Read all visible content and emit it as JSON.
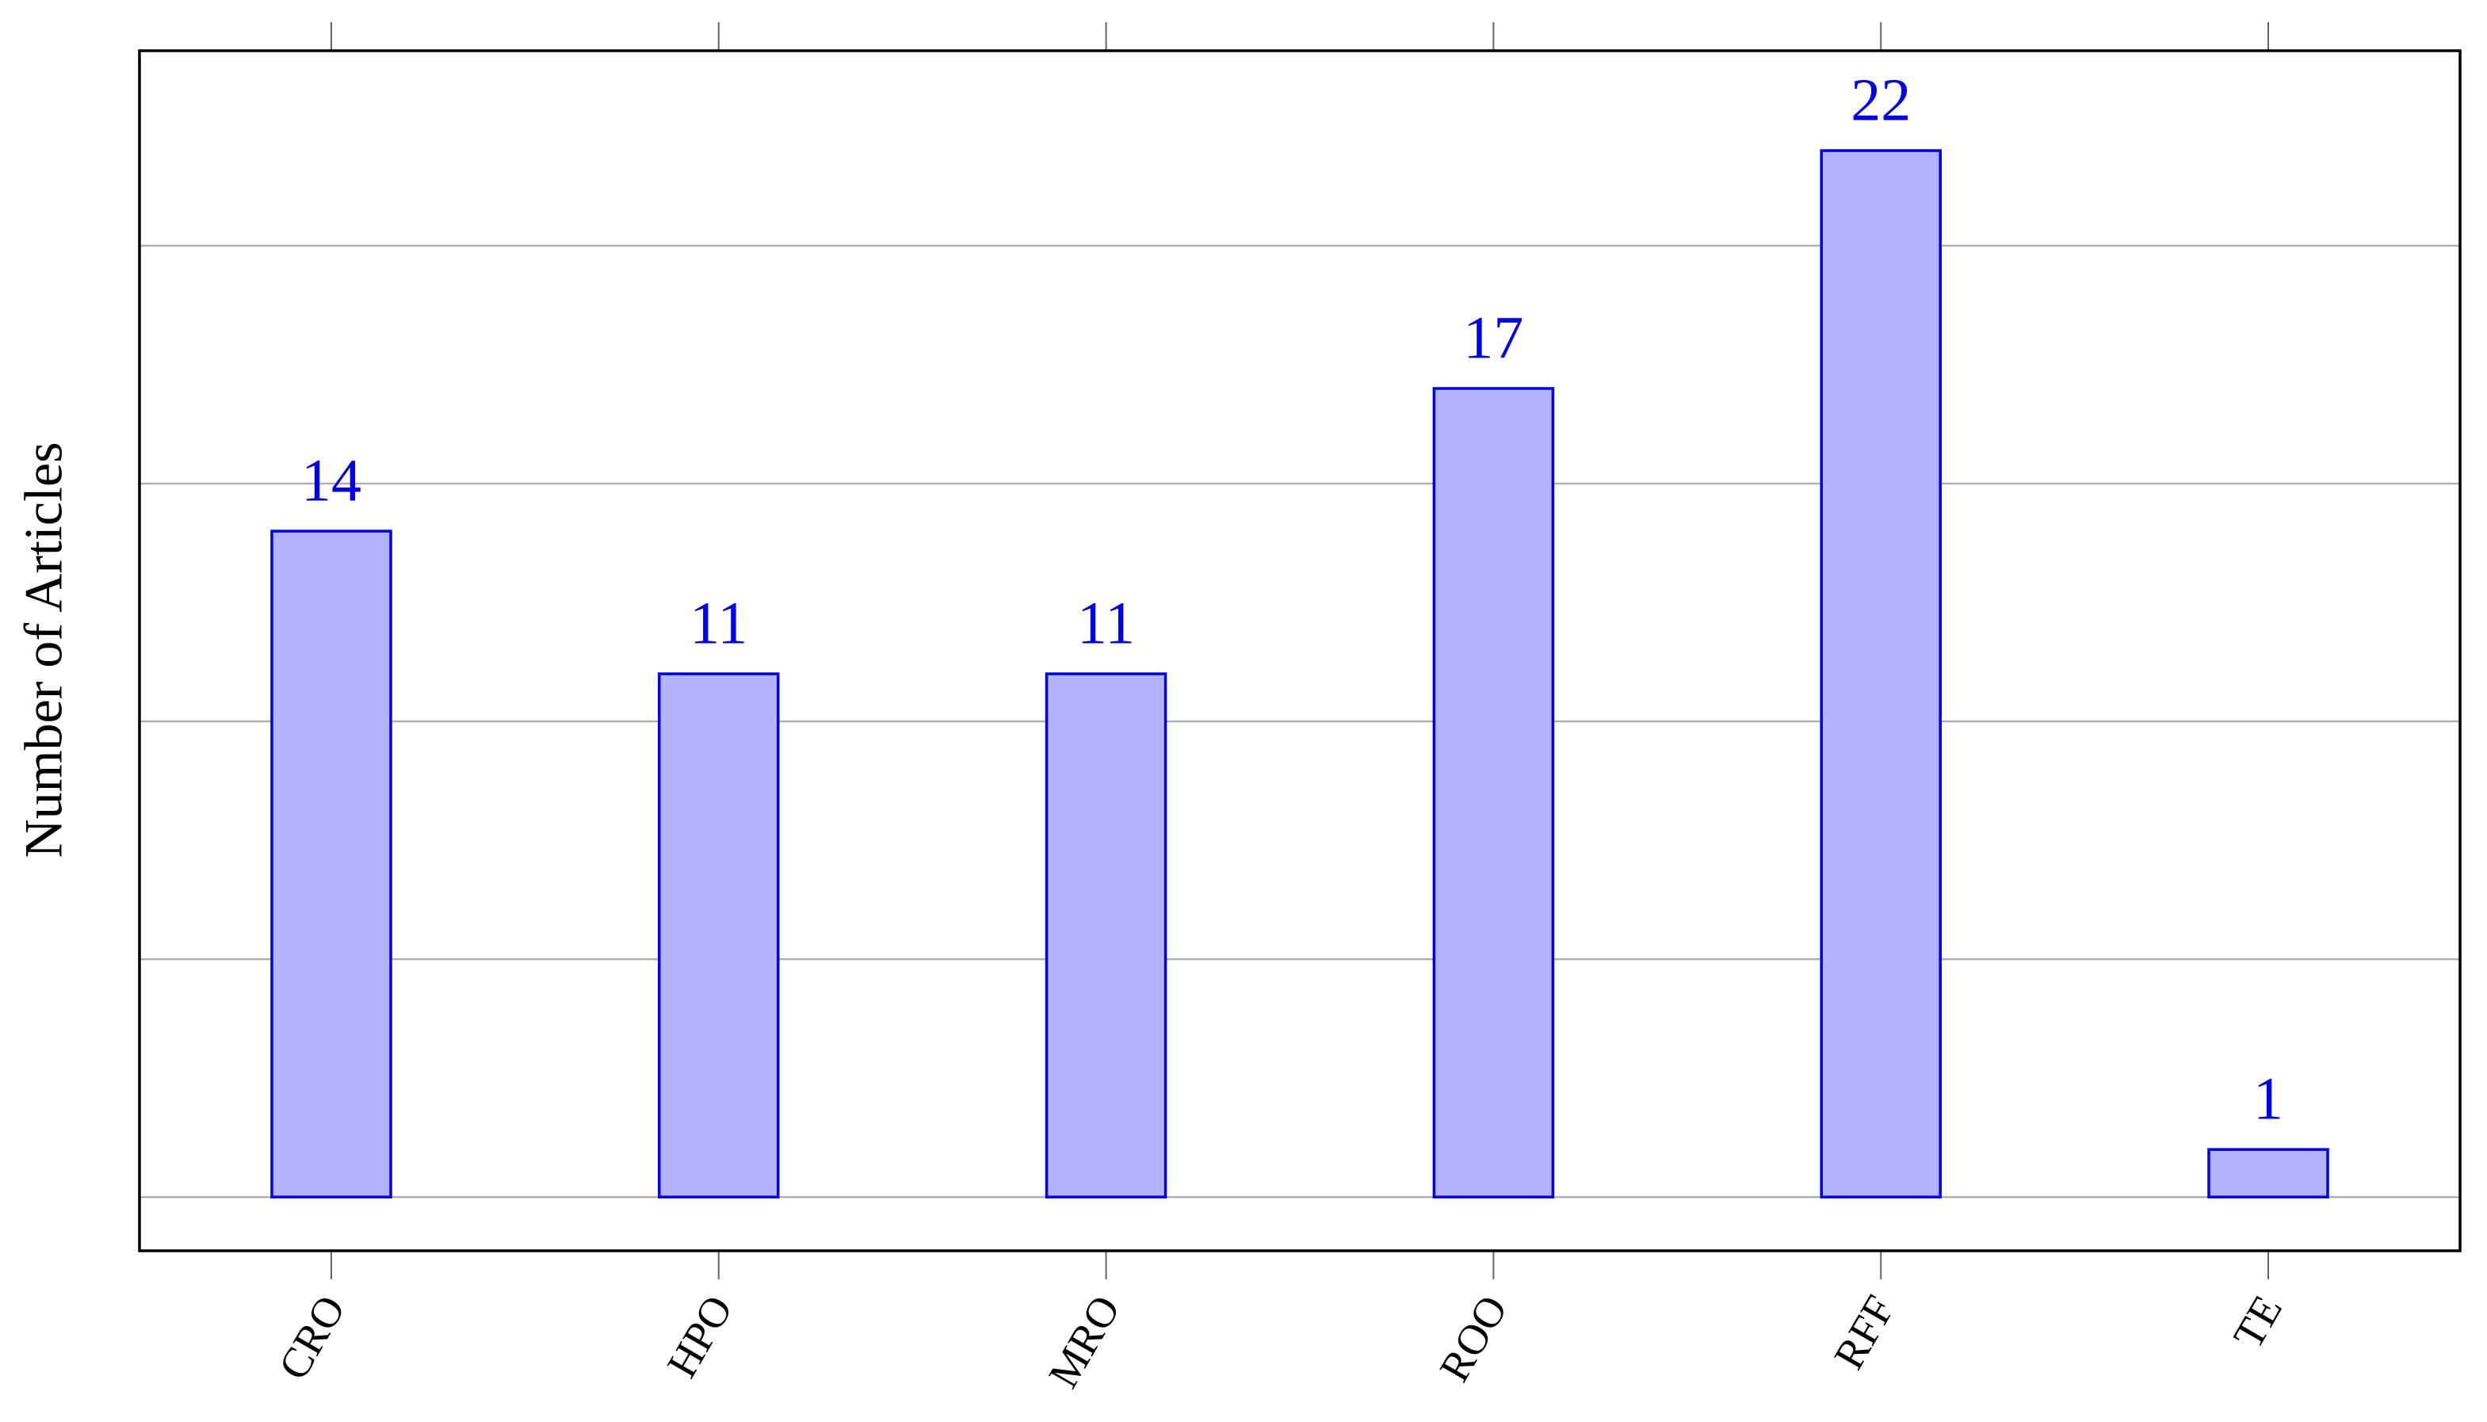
{
  "chart_data": {
    "type": "bar",
    "y_label": "Number of Articles",
    "categories": [
      "CRO",
      "HPO",
      "MRO",
      "ROO",
      "RFF",
      "TE"
    ],
    "values": [
      14,
      11,
      11,
      17,
      22,
      1
    ],
    "color": "#b3b3ff",
    "edge_color": "#0000ee",
    "ylim": [
      -1.13,
      24.1
    ],
    "yticks": [
      0,
      5,
      10,
      15,
      20
    ],
    "grid": true
  }
}
